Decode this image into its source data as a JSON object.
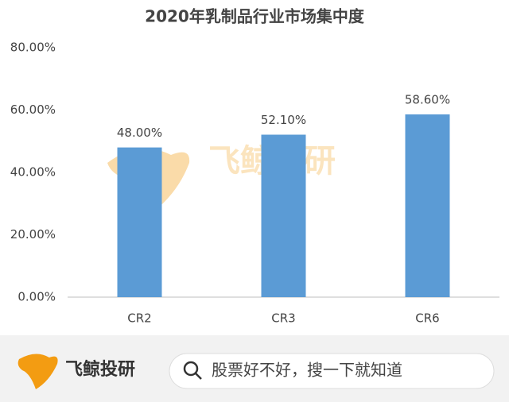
{
  "chart_data": {
    "type": "bar",
    "title": "2020年乳制品行业市场集中度",
    "categories": [
      "CR2",
      "CR3",
      "CR6"
    ],
    "values": [
      48,
      52.1,
      58.6
    ],
    "value_labels": [
      "48.00%",
      "52.10%",
      "58.60%"
    ],
    "color": "#5b9bd5",
    "ylim": [
      0,
      80
    ],
    "yticks": [
      {
        "value": 0,
        "label": "0.00%"
      },
      {
        "value": 20,
        "label": "20.00%"
      },
      {
        "value": 40,
        "label": "40.00%"
      },
      {
        "value": 60,
        "label": "60.00%"
      },
      {
        "value": 80,
        "label": "80.00%"
      }
    ],
    "grid": false,
    "watermark": "飞鲸投研"
  },
  "footer": {
    "logo": "飞鲸投研",
    "search": "股票好不好，搜一下就知道"
  }
}
